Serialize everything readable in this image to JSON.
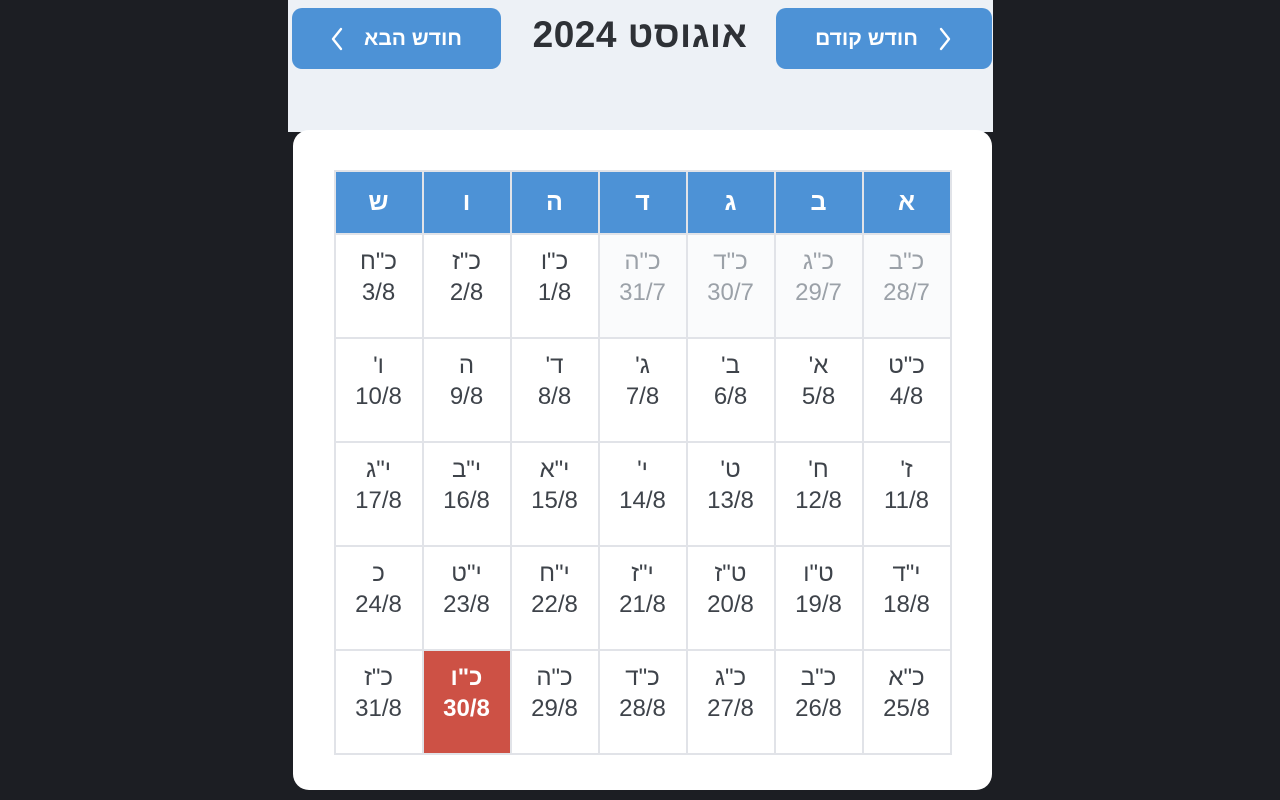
{
  "page": {
    "background_color": "#1c1e23",
    "panel_color": "#edf1f6",
    "card_color": "#ffffff"
  },
  "header": {
    "title": "אוגוסט 2024",
    "prev_button": {
      "label": "חודש קודם",
      "icon": "chevron-right-icon"
    },
    "next_button": {
      "label": "חודש הבא",
      "icon": "chevron-left-icon"
    },
    "button_color": "#4d92d6"
  },
  "calendar": {
    "weekday_headers": [
      "א",
      "ב",
      "ג",
      "ד",
      "ה",
      "ו",
      "ש"
    ],
    "weekday_header_color": "#4d92d6",
    "selected_color": "#cd5145",
    "weeks": [
      [
        {
          "hebrew": "כ\"ב",
          "gregorian": "28/7",
          "muted": true
        },
        {
          "hebrew": "כ\"ג",
          "gregorian": "29/7",
          "muted": true
        },
        {
          "hebrew": "כ\"ד",
          "gregorian": "30/7",
          "muted": true
        },
        {
          "hebrew": "כ\"ה",
          "gregorian": "31/7",
          "muted": true
        },
        {
          "hebrew": "כ\"ו",
          "gregorian": "1/8"
        },
        {
          "hebrew": "כ\"ז",
          "gregorian": "2/8"
        },
        {
          "hebrew": "כ\"ח",
          "gregorian": "3/8"
        }
      ],
      [
        {
          "hebrew": "כ\"ט",
          "gregorian": "4/8"
        },
        {
          "hebrew": "א'",
          "gregorian": "5/8"
        },
        {
          "hebrew": "ב'",
          "gregorian": "6/8"
        },
        {
          "hebrew": "ג'",
          "gregorian": "7/8"
        },
        {
          "hebrew": "ד'",
          "gregorian": "8/8"
        },
        {
          "hebrew": "ה",
          "gregorian": "9/8"
        },
        {
          "hebrew": "ו'",
          "gregorian": "10/8"
        }
      ],
      [
        {
          "hebrew": "ז'",
          "gregorian": "11/8"
        },
        {
          "hebrew": "ח'",
          "gregorian": "12/8"
        },
        {
          "hebrew": "ט'",
          "gregorian": "13/8"
        },
        {
          "hebrew": "י'",
          "gregorian": "14/8"
        },
        {
          "hebrew": "י\"א",
          "gregorian": "15/8"
        },
        {
          "hebrew": "י\"ב",
          "gregorian": "16/8"
        },
        {
          "hebrew": "י\"ג",
          "gregorian": "17/8"
        }
      ],
      [
        {
          "hebrew": "י\"ד",
          "gregorian": "18/8"
        },
        {
          "hebrew": "ט\"ו",
          "gregorian": "19/8"
        },
        {
          "hebrew": "ט\"ז",
          "gregorian": "20/8"
        },
        {
          "hebrew": "י\"ז",
          "gregorian": "21/8"
        },
        {
          "hebrew": "י\"ח",
          "gregorian": "22/8"
        },
        {
          "hebrew": "י\"ט",
          "gregorian": "23/8"
        },
        {
          "hebrew": "כ",
          "gregorian": "24/8"
        }
      ],
      [
        {
          "hebrew": "כ\"א",
          "gregorian": "25/8"
        },
        {
          "hebrew": "כ\"ב",
          "gregorian": "26/8"
        },
        {
          "hebrew": "כ\"ג",
          "gregorian": "27/8"
        },
        {
          "hebrew": "כ\"ד",
          "gregorian": "28/8"
        },
        {
          "hebrew": "כ\"ה",
          "gregorian": "29/8"
        },
        {
          "hebrew": "כ\"ו",
          "gregorian": "30/8",
          "selected": true
        },
        {
          "hebrew": "כ\"ז",
          "gregorian": "31/8"
        }
      ]
    ]
  }
}
